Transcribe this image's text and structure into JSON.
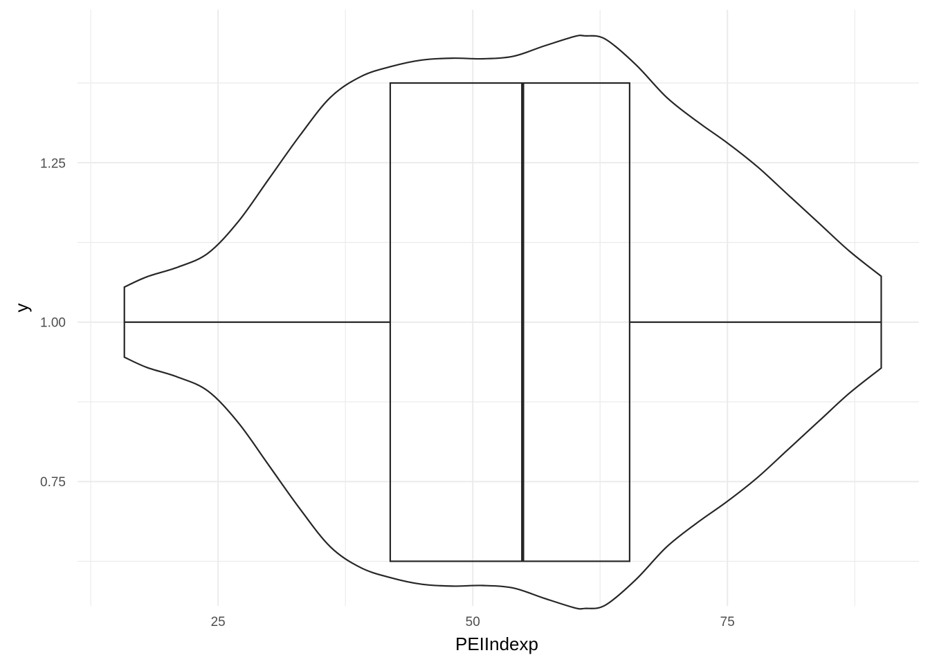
{
  "chart_data": {
    "type": "violin",
    "title": "",
    "xlabel": "PEIIndexp",
    "ylabel": "y",
    "xlim": [
      11.2,
      93.8
    ],
    "ylim": [
      0.555,
      1.49
    ],
    "x_ticks": [
      25,
      50,
      75
    ],
    "x_tick_labels": [
      "25",
      "50",
      "75"
    ],
    "x_minor_ticks": [
      12.5,
      37.5,
      62.5,
      87.5
    ],
    "y_ticks": [
      0.75,
      1.0,
      1.25
    ],
    "y_tick_labels": [
      "0.75",
      "1.00",
      "1.25"
    ],
    "y_minor_ticks": [
      0.625,
      0.875,
      1.125,
      1.375
    ],
    "grid": true,
    "boxplot": {
      "y": 1.0,
      "min": 15.8,
      "q1": 41.9,
      "median": 54.9,
      "q3": 65.4,
      "max": 90.1,
      "ymin": 0.625,
      "ymax": 1.375
    },
    "violin": {
      "center": 1.0,
      "x": [
        15.8,
        15.8,
        18.0,
        21.0,
        24.0,
        27.0,
        30.0,
        33.0,
        36.0,
        39.0,
        42.0,
        45.0,
        48.0,
        51.0,
        54.0,
        57.0,
        60.0,
        61.0,
        63.0,
        66.0,
        69.0,
        72.0,
        75.0,
        78.0,
        81.0,
        84.0,
        87.0,
        90.1,
        90.1
      ],
      "half_width": [
        0.0,
        0.055,
        0.071,
        0.086,
        0.108,
        0.158,
        0.225,
        0.292,
        0.352,
        0.385,
        0.401,
        0.411,
        0.414,
        0.413,
        0.417,
        0.433,
        0.448,
        0.449,
        0.444,
        0.404,
        0.353,
        0.315,
        0.281,
        0.243,
        0.199,
        0.155,
        0.111,
        0.072,
        0.0
      ]
    }
  }
}
